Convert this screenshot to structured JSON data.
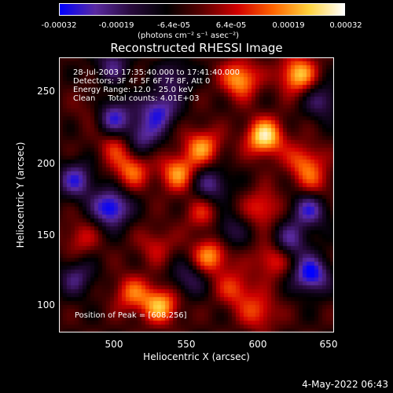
{
  "chart_data": {
    "type": "heatmap",
    "title": "Reconstructed RHESSI Image",
    "xlabel": "Heliocentric X (arcsec)",
    "ylabel": "Heliocentric Y (arcsec)",
    "xlim": [
      463,
      653
    ],
    "ylim": [
      80,
      270
    ],
    "x_ticks": [
      "500",
      "550",
      "600",
      "650"
    ],
    "y_ticks": [
      "100",
      "150",
      "200",
      "250"
    ],
    "colorbar": {
      "ticks": [
        "-0.00032",
        "-0.00019",
        "-6.4e-05",
        "6.4e-05",
        "0.00019",
        "0.00032"
      ],
      "range": [
        -0.00032,
        0.00032
      ],
      "units": "(photons cm⁻² s⁻¹ asec⁻²)",
      "colormap": [
        "#0000ff",
        "#5a2aa0",
        "#280a3c",
        "#000000",
        "#5a0000",
        "#d20000",
        "#ff6400",
        "#ffd23c",
        "#ffffff"
      ]
    },
    "annotations": [
      "28-Jul-2003 17:35:40.000 to 17:41:40.000",
      "Detectors: 3F 4F 5F 6F 7F 8F, Att 0",
      "Energy Range: 12.0 - 25.0 keV",
      "Clean     Total counts: 4.01E+03"
    ],
    "peak_label": "Position of Peak = [608,256]",
    "bright_sources": [
      {
        "x": 605,
        "y": 215,
        "level": 1.0
      },
      {
        "x": 588,
        "y": 255,
        "level": 0.8
      },
      {
        "x": 628,
        "y": 258,
        "level": 0.85
      },
      {
        "x": 562,
        "y": 208,
        "level": 0.7
      },
      {
        "x": 545,
        "y": 190,
        "level": 0.7
      },
      {
        "x": 513,
        "y": 192,
        "level": 0.6
      },
      {
        "x": 502,
        "y": 210,
        "level": 0.45
      },
      {
        "x": 568,
        "y": 133,
        "level": 0.75
      },
      {
        "x": 533,
        "y": 99,
        "level": 0.8
      },
      {
        "x": 513,
        "y": 107,
        "level": 0.55
      },
      {
        "x": 585,
        "y": 110,
        "level": 0.5
      },
      {
        "x": 611,
        "y": 131,
        "level": 0.55
      },
      {
        "x": 604,
        "y": 166,
        "level": 0.5
      },
      {
        "x": 563,
        "y": 162,
        "level": 0.45
      },
      {
        "x": 490,
        "y": 232,
        "level": 0.4
      },
      {
        "x": 632,
        "y": 198,
        "level": 0.55
      },
      {
        "x": 601,
        "y": 94,
        "level": 0.5
      },
      {
        "x": 640,
        "y": 183,
        "level": 0.4
      },
      {
        "x": 478,
        "y": 145,
        "level": 0.35
      },
      {
        "x": 530,
        "y": 140,
        "level": 0.35
      }
    ],
    "dark_sources": [
      {
        "x": 499,
        "y": 229,
        "level": -0.95
      },
      {
        "x": 532,
        "y": 233,
        "level": -0.75
      },
      {
        "x": 499,
        "y": 166,
        "level": -0.95
      },
      {
        "x": 475,
        "y": 185,
        "level": -0.7
      },
      {
        "x": 520,
        "y": 215,
        "level": -0.6
      },
      {
        "x": 568,
        "y": 182,
        "level": -0.6
      },
      {
        "x": 637,
        "y": 120,
        "level": -0.9
      },
      {
        "x": 636,
        "y": 165,
        "level": -0.7
      },
      {
        "x": 622,
        "y": 143,
        "level": -0.6
      },
      {
        "x": 543,
        "y": 256,
        "level": -0.45
      },
      {
        "x": 579,
        "y": 150,
        "level": -0.45
      },
      {
        "x": 500,
        "y": 265,
        "level": -0.5
      },
      {
        "x": 552,
        "y": 117,
        "level": -0.45
      },
      {
        "x": 475,
        "y": 118,
        "level": -0.5
      },
      {
        "x": 645,
        "y": 240,
        "level": -0.5
      }
    ]
  },
  "footer": {
    "date": "4-May-2022 06:43"
  }
}
